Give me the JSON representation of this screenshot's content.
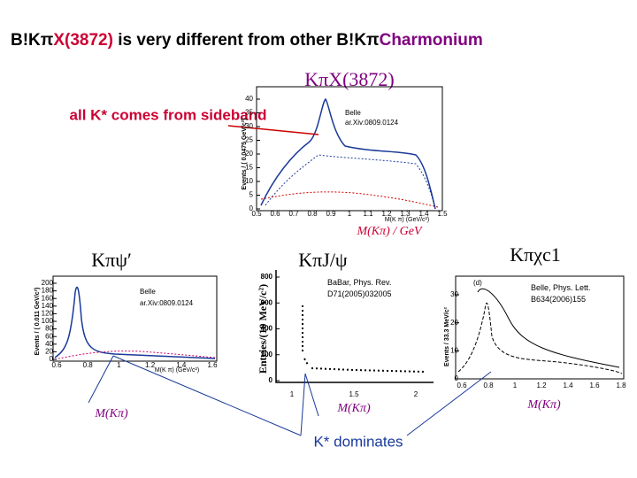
{
  "title": {
    "part1": "B!Kπ",
    "part2": "X(3872)",
    "part3": " is very different from other B!Kπ",
    "part4": "Charmonium"
  },
  "top": {
    "label": "KπX(3872)",
    "annotation": "all K* comes from sideband",
    "source": "Belle",
    "ref": "ar.Xiv:0809.0124",
    "ylabel": "Events / ( 0.0475 GeV/c²)",
    "xlabel": "M(K π) (GeV/c²)",
    "yticks": [
      "0",
      "5",
      "10",
      "15",
      "20",
      "25",
      "30",
      "35",
      "40"
    ],
    "xticks": [
      "0.5",
      "0.6",
      "0.7",
      "0.8",
      "0.9",
      "1",
      "1.1",
      "1.2",
      "1.3",
      "1.4",
      "1.5"
    ],
    "axis_caption": "M(Kπ) / GeV"
  },
  "left": {
    "label": "Kπψ′",
    "source": "Belle",
    "ref": "ar.Xiv:0809.0124",
    "ylabel": "Events / ( 0.011 GeV/c²)",
    "xlabel": "M(K π) (GeV/c²)",
    "yticks": [
      "0",
      "20",
      "40",
      "60",
      "80",
      "100",
      "120",
      "140",
      "160",
      "180",
      "200"
    ],
    "xticks": [
      "0.6",
      "0.8",
      "1",
      "1.2",
      "1.4",
      "1.6"
    ],
    "axis_caption": "M(Kπ)"
  },
  "middle": {
    "label": "KπJ/ψ",
    "ref": "BaBar, Phys. Rev. D71(2005)032005",
    "ylabel": "Entries/(10 MeV/c²)",
    "yticks": [
      "0",
      "200",
      "400",
      "600",
      "800"
    ],
    "xticks": [
      "1",
      "1.5",
      "2"
    ],
    "axis_caption": "M(Kπ)"
  },
  "right": {
    "label": "Kπχc1",
    "panel": "(d)",
    "ref": "Belle, Phys. Lett. B634(2006)155",
    "ylabel": "Events / 33.3 MeV/c²",
    "yticks": [
      "0",
      "10",
      "20",
      "30"
    ],
    "xticks": [
      "0.6",
      "0.8",
      "1",
      "1.2",
      "1.4",
      "1.6",
      "1.8"
    ],
    "axis_caption": "M(Kπ)"
  },
  "footer": "K* dominates"
}
